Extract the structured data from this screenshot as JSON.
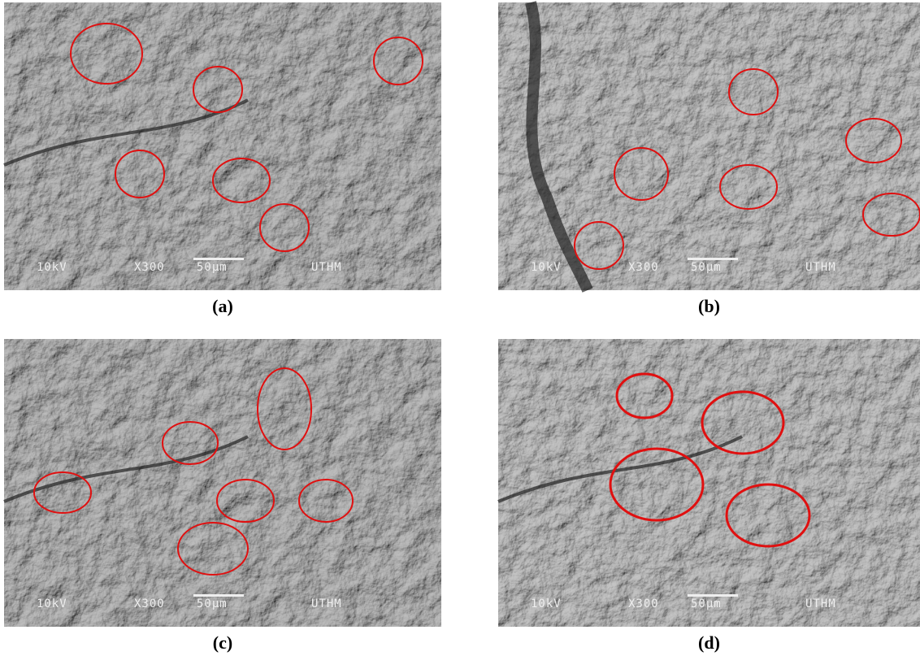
{
  "panels": [
    {
      "label": "(a)",
      "overlay": {
        "voltage": "10kV",
        "magnification": "X300",
        "scale": "50µm",
        "facility": "UTHM"
      }
    },
    {
      "label": "(b)",
      "overlay": {
        "voltage": "10kV",
        "magnification": "X300",
        "scale": "50µm",
        "facility": "UTHM"
      }
    },
    {
      "label": "(c)",
      "overlay": {
        "voltage": "10kV",
        "magnification": "X300",
        "scale": "50µm",
        "facility": "UTHM"
      }
    },
    {
      "label": "(d)",
      "overlay": {
        "voltage": "10kV",
        "magnification": "X300",
        "scale": "50µm",
        "facility": "UTHM"
      }
    }
  ]
}
